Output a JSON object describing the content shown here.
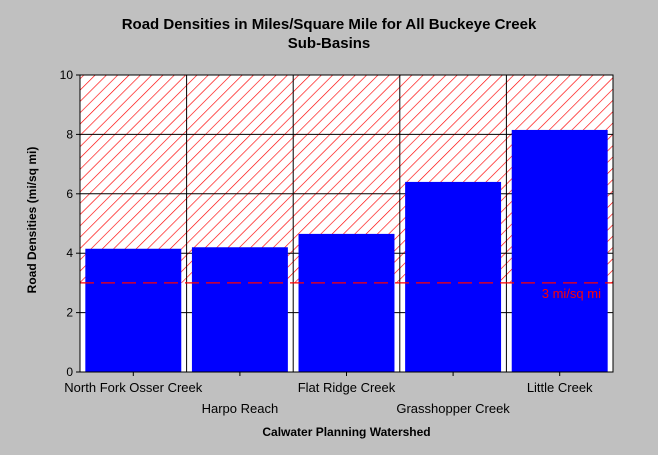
{
  "chart_data": {
    "type": "bar",
    "title": "Road Densities in Miles/Square Mile for All Buckeye Creek Sub-Basins",
    "title_lines": [
      "Road Densities in Miles/Square Mile for All Buckeye Creek",
      "Sub-Basins"
    ],
    "xlabel": "Calwater Planning Watershed",
    "ylabel": "Road Densities (mi/sq mi)",
    "categories": [
      "North Fork Osser Creek",
      "Harpo Reach",
      "Flat Ridge Creek",
      "Grasshopper Creek",
      "Little Creek"
    ],
    "values": [
      4.15,
      4.2,
      4.65,
      6.4,
      8.15
    ],
    "ylim": [
      0,
      10
    ],
    "yticks": [
      "0",
      "2",
      "4",
      "6",
      "8",
      "10"
    ],
    "grid": true,
    "reference_line": {
      "value": 3,
      "label": "3 mi/sq mi",
      "color": "#ff0000",
      "hatch_above": true
    },
    "colors": {
      "bar": "#0000ff",
      "background": "#c0c0c0",
      "plot_bg": "#ffffff",
      "hatch": "#ff0000"
    }
  }
}
